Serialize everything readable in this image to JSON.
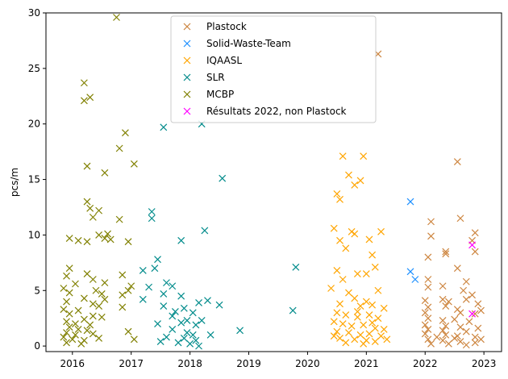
{
  "chart_data": {
    "type": "scatter",
    "title": "",
    "xlabel": "",
    "ylabel": "pcs/m",
    "xlim": [
      2015.55,
      2023.3
    ],
    "ylim": [
      -0.5,
      30
    ],
    "xticks": [
      "2016",
      "2017",
      "2018",
      "2019",
      "2020",
      "2021",
      "2022",
      "2023"
    ],
    "yticks": [
      0,
      5,
      10,
      15,
      20,
      25,
      30
    ],
    "grid": false,
    "legend_position": "top-center",
    "marker": "x",
    "series": [
      {
        "name": "Plastock",
        "color": "#cd853f",
        "points": [
          [
            2021.2,
            26.3
          ],
          [
            2022.55,
            16.6
          ],
          [
            2022.6,
            11.5
          ],
          [
            2022.1,
            11.2
          ],
          [
            2022.85,
            10.2
          ],
          [
            2022.1,
            9.9
          ],
          [
            2022.8,
            9.5
          ],
          [
            2022.05,
            8.0
          ],
          [
            2022.35,
            8.5
          ],
          [
            2022.35,
            8.3
          ],
          [
            2022.85,
            8.5
          ],
          [
            2022.55,
            7.0
          ],
          [
            2022.05,
            6.0
          ],
          [
            2022.7,
            5.8
          ],
          [
            2022.3,
            5.4
          ],
          [
            2022.05,
            5.3
          ],
          [
            2022.65,
            5.0
          ],
          [
            2022.8,
            4.6
          ],
          [
            2022.0,
            4.1
          ],
          [
            2022.3,
            4.2
          ],
          [
            2022.4,
            4.0
          ],
          [
            2022.7,
            4.2
          ],
          [
            2022.9,
            3.8
          ],
          [
            2022.05,
            3.5
          ],
          [
            2022.35,
            3.6
          ],
          [
            2022.55,
            3.3
          ],
          [
            2022.95,
            3.2
          ],
          [
            2022.0,
            3.0
          ],
          [
            2022.6,
            3.0
          ],
          [
            2022.85,
            2.9
          ],
          [
            2022.05,
            2.5
          ],
          [
            2022.3,
            2.3
          ],
          [
            2022.5,
            2.4
          ],
          [
            2022.75,
            2.2
          ],
          [
            2022.0,
            1.9
          ],
          [
            2022.35,
            1.8
          ],
          [
            2022.6,
            1.7
          ],
          [
            2022.9,
            1.6
          ],
          [
            2022.05,
            1.5
          ],
          [
            2022.3,
            1.4
          ],
          [
            2022.7,
            1.3
          ],
          [
            2022.0,
            1.1
          ],
          [
            2022.35,
            1.0
          ],
          [
            2022.55,
            0.9
          ],
          [
            2022.85,
            0.8
          ],
          [
            2022.05,
            0.6
          ],
          [
            2022.3,
            0.5
          ],
          [
            2022.6,
            0.4
          ],
          [
            2022.95,
            0.6
          ],
          [
            2022.1,
            0.2
          ],
          [
            2022.4,
            0.2
          ],
          [
            2022.7,
            0.1
          ],
          [
            2022.85,
            0.3
          ],
          [
            2022.2,
            0.8
          ],
          [
            2022.5,
            0.7
          ]
        ]
      },
      {
        "name": "Solid-Waste-Team",
        "color": "#1e90ff",
        "points": [
          [
            2021.75,
            13.0
          ],
          [
            2021.75,
            6.7
          ],
          [
            2021.83,
            6.0
          ]
        ]
      },
      {
        "name": "IQAASL",
        "color": "#ffa500",
        "points": [
          [
            2020.6,
            17.1
          ],
          [
            2020.95,
            17.1
          ],
          [
            2020.7,
            15.4
          ],
          [
            2020.9,
            14.9
          ],
          [
            2020.8,
            14.5
          ],
          [
            2020.5,
            13.7
          ],
          [
            2020.55,
            13.2
          ],
          [
            2020.45,
            10.6
          ],
          [
            2020.75,
            10.3
          ],
          [
            2020.8,
            10.1
          ],
          [
            2021.25,
            10.3
          ],
          [
            2020.55,
            9.5
          ],
          [
            2021.05,
            9.6
          ],
          [
            2020.65,
            8.8
          ],
          [
            2021.1,
            8.2
          ],
          [
            2021.15,
            7.1
          ],
          [
            2020.5,
            6.8
          ],
          [
            2020.85,
            6.5
          ],
          [
            2021.0,
            6.5
          ],
          [
            2020.6,
            6.0
          ],
          [
            2020.4,
            5.2
          ],
          [
            2021.2,
            5.0
          ],
          [
            2020.7,
            4.8
          ],
          [
            2020.8,
            4.3
          ],
          [
            2021.0,
            4.0
          ],
          [
            2020.55,
            3.8
          ],
          [
            2020.9,
            3.6
          ],
          [
            2021.1,
            3.7
          ],
          [
            2021.3,
            3.4
          ],
          [
            2020.5,
            3.0
          ],
          [
            2020.65,
            2.8
          ],
          [
            2020.85,
            2.6
          ],
          [
            2021.05,
            2.8
          ],
          [
            2021.2,
            2.5
          ],
          [
            2020.45,
            2.2
          ],
          [
            2020.6,
            2.0
          ],
          [
            2020.75,
            1.8
          ],
          [
            2020.95,
            1.9
          ],
          [
            2021.15,
            1.6
          ],
          [
            2021.3,
            1.5
          ],
          [
            2020.5,
            1.3
          ],
          [
            2020.7,
            1.2
          ],
          [
            2020.9,
            1.0
          ],
          [
            2021.05,
            1.1
          ],
          [
            2021.25,
            0.9
          ],
          [
            2020.55,
            0.7
          ],
          [
            2020.8,
            0.6
          ],
          [
            2021.0,
            0.5
          ],
          [
            2021.15,
            0.4
          ],
          [
            2020.65,
            0.3
          ],
          [
            2020.95,
            0.2
          ],
          [
            2021.35,
            0.6
          ],
          [
            2020.45,
            0.9
          ],
          [
            2021.1,
            2.1
          ],
          [
            2020.85,
            3.1
          ]
        ]
      },
      {
        "name": "SLR",
        "color": "#008b8b",
        "points": [
          [
            2017.55,
            19.7
          ],
          [
            2018.2,
            20.0
          ],
          [
            2018.55,
            15.1
          ],
          [
            2017.35,
            12.1
          ],
          [
            2017.35,
            11.5
          ],
          [
            2018.25,
            10.4
          ],
          [
            2017.85,
            9.5
          ],
          [
            2017.45,
            7.8
          ],
          [
            2019.8,
            7.1
          ],
          [
            2017.4,
            7.0
          ],
          [
            2017.2,
            6.8
          ],
          [
            2017.6,
            5.7
          ],
          [
            2017.7,
            5.4
          ],
          [
            2017.3,
            5.3
          ],
          [
            2017.55,
            4.7
          ],
          [
            2017.85,
            4.5
          ],
          [
            2017.2,
            4.2
          ],
          [
            2018.3,
            4.1
          ],
          [
            2018.15,
            3.9
          ],
          [
            2018.5,
            3.7
          ],
          [
            2017.55,
            3.6
          ],
          [
            2017.9,
            3.4
          ],
          [
            2017.75,
            3.1
          ],
          [
            2019.75,
            3.2
          ],
          [
            2018.05,
            3.0
          ],
          [
            2017.7,
            2.7
          ],
          [
            2017.95,
            2.3
          ],
          [
            2017.45,
            2.0
          ],
          [
            2017.85,
            2.1
          ],
          [
            2018.1,
            1.9
          ],
          [
            2018.2,
            2.3
          ],
          [
            2018.85,
            1.4
          ],
          [
            2017.7,
            1.5
          ],
          [
            2017.95,
            1.2
          ],
          [
            2018.05,
            1.0
          ],
          [
            2018.35,
            1.0
          ],
          [
            2017.6,
            0.8
          ],
          [
            2017.9,
            0.7
          ],
          [
            2018.1,
            0.5
          ],
          [
            2017.5,
            0.4
          ],
          [
            2017.8,
            0.3
          ],
          [
            2018.0,
            0.2
          ],
          [
            2018.15,
            0.0
          ]
        ]
      },
      {
        "name": "MCBP",
        "color": "#808000",
        "points": [
          [
            2016.75,
            29.6
          ],
          [
            2016.2,
            23.7
          ],
          [
            2016.3,
            22.4
          ],
          [
            2016.2,
            22.1
          ],
          [
            2016.9,
            19.2
          ],
          [
            2016.8,
            17.8
          ],
          [
            2017.05,
            16.4
          ],
          [
            2016.25,
            16.2
          ],
          [
            2016.55,
            15.6
          ],
          [
            2016.25,
            13.0
          ],
          [
            2016.3,
            12.4
          ],
          [
            2016.45,
            12.2
          ],
          [
            2016.8,
            11.4
          ],
          [
            2016.35,
            11.6
          ],
          [
            2016.45,
            10.0
          ],
          [
            2016.6,
            10.1
          ],
          [
            2016.55,
            9.7
          ],
          [
            2016.65,
            9.6
          ],
          [
            2015.95,
            9.7
          ],
          [
            2016.1,
            9.5
          ],
          [
            2016.25,
            9.4
          ],
          [
            2016.95,
            9.4
          ],
          [
            2015.95,
            7.0
          ],
          [
            2016.25,
            6.5
          ],
          [
            2016.85,
            6.4
          ],
          [
            2015.9,
            6.3
          ],
          [
            2016.35,
            6.0
          ],
          [
            2016.05,
            5.6
          ],
          [
            2016.55,
            5.7
          ],
          [
            2017.0,
            5.4
          ],
          [
            2015.85,
            5.2
          ],
          [
            2016.4,
            5.0
          ],
          [
            2016.95,
            5.0
          ],
          [
            2015.95,
            4.8
          ],
          [
            2016.5,
            4.7
          ],
          [
            2016.85,
            4.6
          ],
          [
            2016.2,
            4.3
          ],
          [
            2016.55,
            4.2
          ],
          [
            2015.9,
            4.0
          ],
          [
            2016.35,
            3.8
          ],
          [
            2016.45,
            3.6
          ],
          [
            2016.85,
            3.5
          ],
          [
            2015.85,
            3.3
          ],
          [
            2016.1,
            3.2
          ],
          [
            2015.95,
            2.9
          ],
          [
            2016.35,
            2.7
          ],
          [
            2016.5,
            2.6
          ],
          [
            2016.2,
            2.4
          ],
          [
            2015.9,
            2.2
          ],
          [
            2016.05,
            2.0
          ],
          [
            2016.3,
            1.9
          ],
          [
            2015.95,
            1.7
          ],
          [
            2016.1,
            1.5
          ],
          [
            2016.25,
            1.4
          ],
          [
            2015.9,
            1.2
          ],
          [
            2016.05,
            1.0
          ],
          [
            2016.35,
            1.1
          ],
          [
            2016.95,
            1.3
          ],
          [
            2015.85,
            0.8
          ],
          [
            2016.0,
            0.6
          ],
          [
            2016.2,
            0.5
          ],
          [
            2016.45,
            0.7
          ],
          [
            2017.05,
            0.6
          ],
          [
            2015.9,
            0.3
          ],
          [
            2016.15,
            0.2
          ]
        ]
      },
      {
        "name": "Résultats 2022, non Plastock",
        "color": "#ff00ff",
        "points": [
          [
            2022.8,
            9.1
          ],
          [
            2022.8,
            2.9
          ]
        ]
      }
    ]
  }
}
